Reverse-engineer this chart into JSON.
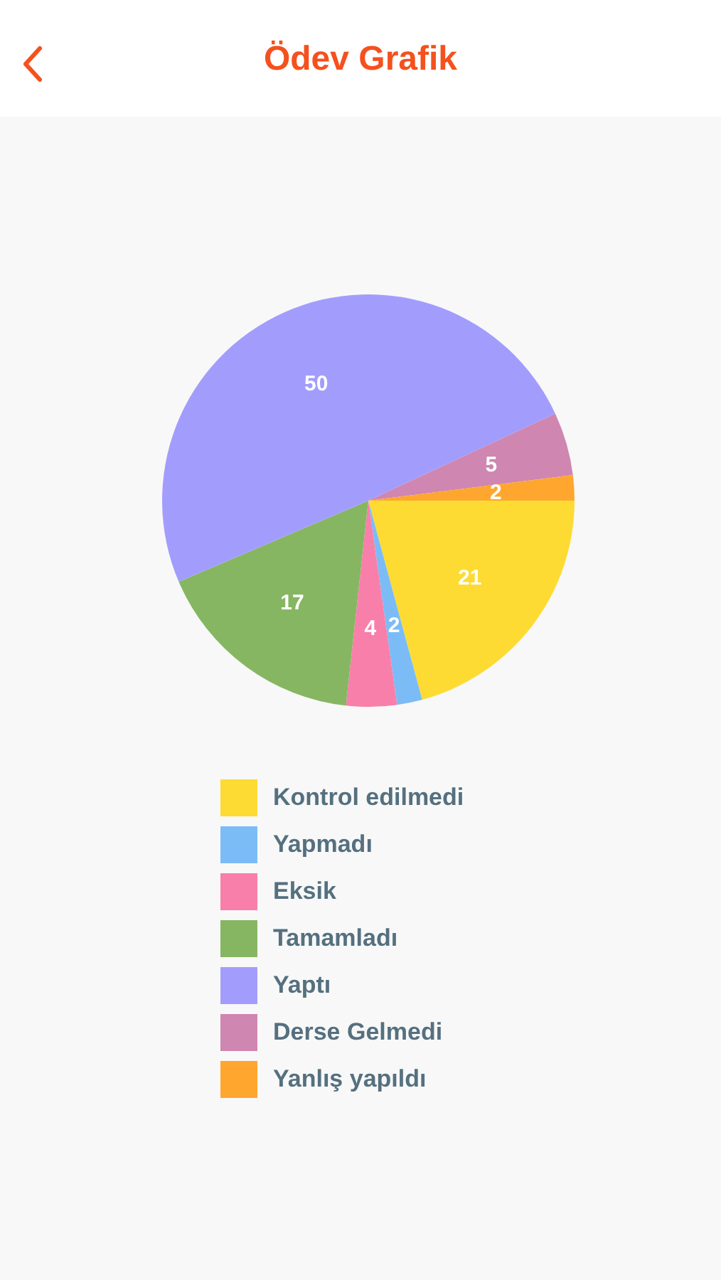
{
  "chart_data": {
    "type": "pie",
    "title": "Ödev Grafik",
    "categories": [
      "Kontrol edilmedi",
      "Yapmadı",
      "Eksik",
      "Tamamladı",
      "Yaptı",
      "Derse Gelmedi",
      "Yanlış yapıldı"
    ],
    "values": [
      21,
      2,
      4,
      17,
      50,
      5,
      2
    ],
    "colors": [
      "#fddb33",
      "#7bbcf7",
      "#f87faa",
      "#86b662",
      "#a29dfd",
      "#cf86b1",
      "#ffa62e"
    ],
    "data_labels": true,
    "legend": "bottom"
  }
}
